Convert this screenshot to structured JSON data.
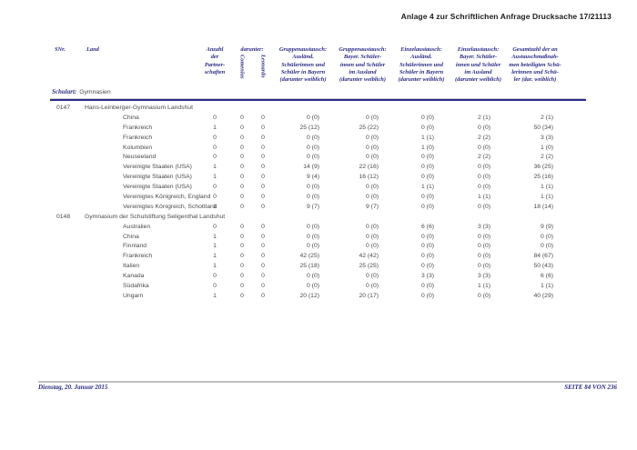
{
  "page": {
    "header_title": "Anlage 4 zur Schriftlichen Anfrage Drucksache 17/21113",
    "footer": {
      "date": "Dienstag, 20. Januar 2015",
      "page_label": "SEITE 84 VON 236"
    }
  },
  "colors": {
    "navy": "#2b2b87",
    "text_gray": "#4b4b4b"
  },
  "table": {
    "schulart_label": "Schulart:",
    "schulart_value": "Gymnasien",
    "columns": {
      "snr": "SNr.",
      "land": "Land",
      "anzahl_lines": [
        "Anzahl",
        "der",
        "Partner-",
        "schaften"
      ],
      "darunter": "darunter:",
      "comenius": "Comenius",
      "leonardo": "Leonardo",
      "group_cols": [
        [
          "Gruppenaustausch:",
          "Ausländ.",
          "Schülerinnen und",
          "Schüler in Bayern",
          "(darunter weiblich)"
        ],
        [
          "Gruppenaustausch:",
          "Bayer. Schüler-",
          "innen und Schüler",
          "im Ausland",
          "(darunter weiblich)"
        ],
        [
          "Einzelaustausch:",
          "Ausländ.",
          "Schülerinnen und",
          "Schüler in Bayern",
          "(darunter weiblich)"
        ],
        [
          "Einzelaustausch:",
          "Bayer. Schüler-",
          "innen und Schüler",
          "im Ausland",
          "(darunter weiblich)"
        ],
        [
          "Gesamtzahl der an",
          "Austauschmaßnah-",
          "men beteiligten Schü-",
          "lerinnen und Schü-",
          "ler (dar. weiblich)"
        ]
      ]
    },
    "groups": [
      {
        "snr": "0147",
        "school": "Hans-Leinberger-Gymnasium Landshut",
        "rows": [
          {
            "land": "China",
            "vals": [
              "0",
              "0",
              "0",
              "0 (0)",
              "0 (0)",
              "0 (0)",
              "2 (1)",
              "2 (1)"
            ]
          },
          {
            "land": "Frankreich",
            "vals": [
              "1",
              "0",
              "0",
              "25 (12)",
              "25 (22)",
              "0 (0)",
              "0 (0)",
              "50 (34)"
            ]
          },
          {
            "land": "Frankreich",
            "vals": [
              "0",
              "0",
              "0",
              "0 (0)",
              "0 (0)",
              "1 (1)",
              "2 (2)",
              "3 (3)"
            ]
          },
          {
            "land": "Kolumbien",
            "vals": [
              "0",
              "0",
              "0",
              "0 (0)",
              "0 (0)",
              "1 (0)",
              "0 (0)",
              "1 (0)"
            ]
          },
          {
            "land": "Neuseeland",
            "vals": [
              "0",
              "0",
              "0",
              "0 (0)",
              "0 (0)",
              "0 (0)",
              "2 (2)",
              "2 (2)"
            ]
          },
          {
            "land": "Vereinigte Staaten (USA)",
            "vals": [
              "1",
              "0",
              "0",
              "14 (9)",
              "22 (16)",
              "0 (0)",
              "0 (0)",
              "36 (25)"
            ]
          },
          {
            "land": "Vereinigte Staaten (USA)",
            "vals": [
              "1",
              "0",
              "0",
              "9 (4)",
              "16 (12)",
              "0 (0)",
              "0 (0)",
              "25 (16)"
            ]
          },
          {
            "land": "Vereinigte Staaten (USA)",
            "vals": [
              "0",
              "0",
              "0",
              "0 (0)",
              "0 (0)",
              "1 (1)",
              "0 (0)",
              "1 (1)"
            ]
          },
          {
            "land": "Vereinigtes Königreich, England",
            "vals": [
              "0",
              "0",
              "0",
              "0 (0)",
              "0 (0)",
              "0 (0)",
              "1 (1)",
              "1 (1)"
            ]
          },
          {
            "land": "Vereinigtes Königreich, Schottland",
            "vals": [
              "1",
              "0",
              "0",
              "9 (7)",
              "9 (7)",
              "0 (0)",
              "0 (0)",
              "18 (14)"
            ]
          }
        ]
      },
      {
        "snr": "0148",
        "school": "Gymnasium der Schulstiftung Seligenthal Landshut",
        "rows": [
          {
            "land": "Australien",
            "vals": [
              "0",
              "0",
              "0",
              "0 (0)",
              "0 (0)",
              "6 (6)",
              "3 (3)",
              "9 (9)"
            ]
          },
          {
            "land": "China",
            "vals": [
              "1",
              "0",
              "0",
              "0 (0)",
              "0 (0)",
              "0 (0)",
              "0 (0)",
              "0 (0)"
            ]
          },
          {
            "land": "Finnland",
            "vals": [
              "1",
              "0",
              "0",
              "0 (0)",
              "0 (0)",
              "0 (0)",
              "0 (0)",
              "0 (0)"
            ]
          },
          {
            "land": "Frankreich",
            "vals": [
              "1",
              "0",
              "0",
              "42 (25)",
              "42 (42)",
              "0 (0)",
              "0 (0)",
              "84 (67)"
            ]
          },
          {
            "land": "Italien",
            "vals": [
              "1",
              "0",
              "0",
              "25 (18)",
              "25 (25)",
              "0 (0)",
              "0 (0)",
              "50 (43)"
            ]
          },
          {
            "land": "Kanada",
            "vals": [
              "0",
              "0",
              "0",
              "0 (0)",
              "0 (0)",
              "3 (3)",
              "3 (3)",
              "6 (6)"
            ]
          },
          {
            "land": "Südafrika",
            "vals": [
              "0",
              "0",
              "0",
              "0 (0)",
              "0 (0)",
              "0 (0)",
              "1 (1)",
              "1 (1)"
            ]
          },
          {
            "land": "Ungarn",
            "vals": [
              "1",
              "0",
              "0",
              "20 (12)",
              "20 (17)",
              "0 (0)",
              "0 (0)",
              "40 (29)"
            ]
          }
        ]
      }
    ]
  }
}
